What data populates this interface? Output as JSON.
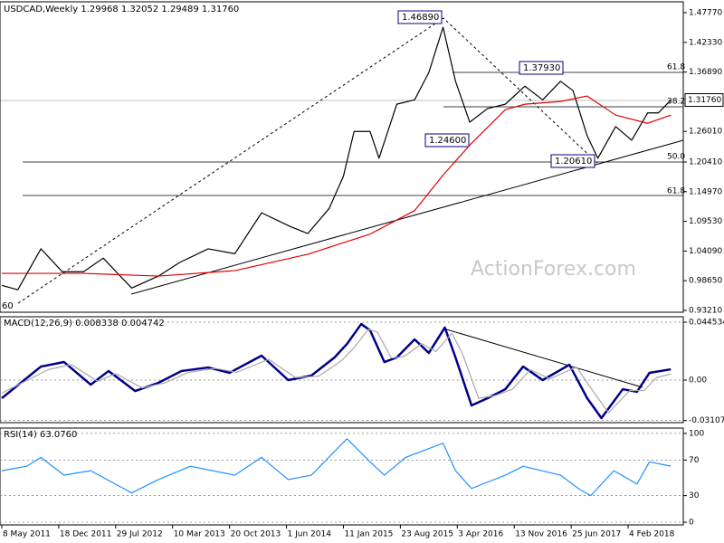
{
  "chart_data": [
    {
      "type": "line",
      "title": "USDCAD,Weekly  1.29968 1.32052 1.29489 1.31760",
      "watermark": "ActionForex.com",
      "xlim": [
        -1,
        383
      ],
      "ylim": [
        0.9288,
        1.4976
      ],
      "yticks": [
        {
          "value": 1.4777,
          "label": "1.47770"
        },
        {
          "value": 1.4233,
          "label": "1.42330"
        },
        {
          "value": 1.3689,
          "label": "1.36890"
        },
        {
          "value": 1.2601,
          "label": "1.26010"
        },
        {
          "value": 1.2041,
          "label": "1.20410"
        },
        {
          "value": 1.1497,
          "label": "1.14970"
        },
        {
          "value": 1.0953,
          "label": "1.09530"
        },
        {
          "value": 1.0409,
          "label": "1.04090"
        },
        {
          "value": 0.9865,
          "label": "0.98650"
        },
        {
          "value": 0.9321,
          "label": "0.93210"
        }
      ],
      "last_price": {
        "value": 1.3176,
        "label": "1.31760"
      },
      "series": [
        {
          "name": "USDCAD",
          "color": "#000000",
          "x": [
            0,
            9,
            22,
            34,
            46,
            57,
            73,
            88,
            100,
            116,
            131,
            146,
            162,
            172,
            184,
            192,
            198,
            207,
            212,
            222,
            232,
            240,
            248,
            255,
            263,
            273,
            283,
            294,
            304,
            314,
            321,
            329,
            335,
            345,
            354,
            363,
            369,
            376
          ],
          "values": [
            0.978,
            0.97,
            1.045,
            1.003,
            1.003,
            1.028,
            0.973,
            0.995,
            1.02,
            1.045,
            1.036,
            1.111,
            1.086,
            1.073,
            1.119,
            1.178,
            1.26,
            1.26,
            1.211,
            1.31,
            1.318,
            1.368,
            1.451,
            1.352,
            1.277,
            1.302,
            1.31,
            1.343,
            1.318,
            1.352,
            1.335,
            1.252,
            1.211,
            1.269,
            1.244,
            1.294,
            1.294,
            1.3176
          ]
        },
        {
          "name": "MA",
          "color": "#e00000",
          "x": [
            0,
            46,
            88,
            131,
            172,
            207,
            232,
            248,
            263,
            283,
            294,
            314,
            329,
            345,
            363,
            376
          ],
          "values": [
            1.0,
            1.0,
            0.995,
            1.005,
            1.035,
            1.072,
            1.115,
            1.18,
            1.235,
            1.3,
            1.31,
            1.315,
            1.325,
            1.29,
            1.275,
            1.29
          ]
        }
      ],
      "annotations": [
        "1.46890",
        "1.37930",
        "1.24600",
        "1.20610",
        "61.8",
        "38.2",
        "50.0",
        "61.8",
        "60"
      ]
    },
    {
      "type": "line",
      "title": "MACD(12,26,9) 0.008338 0.004742",
      "xlim": [
        -1,
        383
      ],
      "ylim": [
        -0.0327,
        0.04871
      ],
      "yticks": [
        {
          "value": 0.044534,
          "label": "0.044534"
        },
        {
          "value": 0,
          "label": "0.00"
        },
        {
          "value": -0.031072,
          "label": "-0.031072"
        }
      ],
      "series": [
        {
          "name": "MACD",
          "color": "#00008b",
          "x": [
            0,
            22,
            35,
            50,
            60,
            75,
            88,
            101,
            116,
            128,
            146,
            161,
            174,
            187,
            194,
            202,
            207,
            215,
            222,
            232,
            240,
            249,
            255,
            264,
            273,
            283,
            293,
            304,
            319,
            329,
            337,
            349,
            357,
            364,
            376
          ],
          "values": [
            -0.0139,
            0.0104,
            0.0139,
            -0.0035,
            0.007,
            -0.0084,
            -0.0021,
            0.007,
            0.0097,
            0.0056,
            0.0188,
            0,
            0.0035,
            0.0174,
            0.0278,
            0.0431,
            0.0383,
            0.0139,
            0.0174,
            0.0313,
            0.0209,
            0.0404,
            0.0174,
            -0.0195,
            -0.0139,
            -0.007,
            0.0104,
            0,
            0.0118,
            -0.0139,
            -0.0292,
            -0.007,
            -0.009,
            0.0056,
            0.0083
          ]
        },
        {
          "name": "Signal",
          "color": "#a9a9a9",
          "x": [
            0,
            26,
            39,
            54,
            64,
            79,
            92,
            105,
            120,
            132,
            150,
            165,
            178,
            191,
            198,
            206,
            211,
            219,
            226,
            236,
            244,
            253,
            259,
            268,
            277,
            287,
            297,
            308,
            323,
            333,
            341,
            353,
            361,
            368,
            376
          ],
          "values": [
            -0.01,
            0.008,
            0.012,
            -0.001,
            0.005,
            -0.006,
            -0.002,
            0.006,
            0.009,
            0.006,
            0.016,
            0.002,
            0.003,
            0.015,
            0.025,
            0.039,
            0.037,
            0.017,
            0.018,
            0.028,
            0.022,
            0.036,
            0.02,
            -0.014,
            -0.012,
            -0.007,
            0.008,
            0.001,
            0.01,
            -0.01,
            -0.025,
            -0.008,
            -0.008,
            0.002,
            0.0047
          ]
        }
      ]
    },
    {
      "type": "line",
      "title": "RSI(14) 63.0760",
      "xlim": [
        -1,
        383
      ],
      "ylim": [
        -3,
        106
      ],
      "yticks": [
        100,
        70,
        30,
        0
      ],
      "xticks": [
        {
          "value": 0,
          "label": "8 May 2011"
        },
        {
          "value": 32,
          "label": "18 Dec 2011"
        },
        {
          "value": 64,
          "label": "29 Jul 2012"
        },
        {
          "value": 96,
          "label": "10 Mar 2013"
        },
        {
          "value": 128,
          "label": "20 Oct 2013"
        },
        {
          "value": 160,
          "label": "1 Jun 2014"
        },
        {
          "value": 192,
          "label": "11 Jan 2015"
        },
        {
          "value": 224,
          "label": "23 Aug 2015"
        },
        {
          "value": 256,
          "label": "3 Apr 2016"
        },
        {
          "value": 288,
          "label": "13 Nov 2016"
        },
        {
          "value": 320,
          "label": "25 Jun 2017"
        },
        {
          "value": 352,
          "label": "4 Feb 2018"
        }
      ],
      "series": [
        {
          "name": "RSI",
          "color": "#1e90ff",
          "x": [
            0,
            14,
            22,
            35,
            50,
            73,
            88,
            106,
            131,
            146,
            161,
            174,
            194,
            207,
            215,
            227,
            248,
            255,
            264,
            283,
            293,
            314,
            324,
            331,
            344,
            357,
            364,
            376
          ],
          "values": [
            58,
            63,
            73,
            53,
            58,
            33,
            48,
            63,
            53,
            73,
            48,
            53,
            94,
            68,
            53,
            73,
            89,
            58,
            38,
            53,
            63,
            53,
            38,
            30,
            58,
            43,
            68,
            63.08
          ]
        }
      ]
    }
  ]
}
